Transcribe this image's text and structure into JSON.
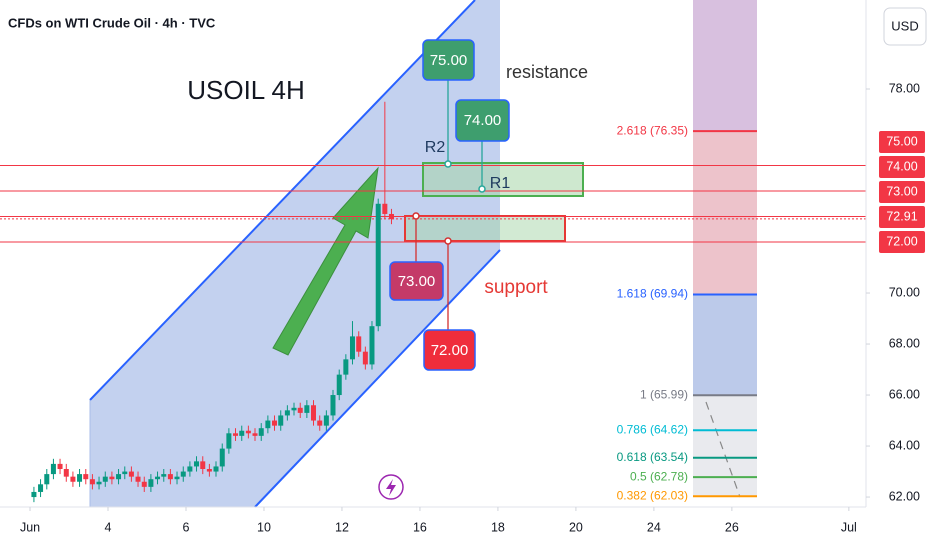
{
  "chart_data": {
    "type": "candlestick",
    "header": "CFDs on WTI Crude Oil · 4h · TVC",
    "title": "USOIL 4H",
    "currency": "USD",
    "up_color": "#089981",
    "down_color": "#f23645",
    "xlim": [
      -0.77,
      21.44
    ],
    "xticks": [
      {
        "value": 0,
        "label": "Jun"
      },
      2,
      4,
      6,
      8,
      10,
      12,
      14,
      16,
      18,
      {
        "value": 21,
        "label": "Jul"
      }
    ],
    "xtick_labels": [
      "Jun",
      "4",
      "6",
      "10",
      "12",
      "16",
      "18",
      "20",
      "24",
      "26",
      "Jul"
    ],
    "ylim": [
      61.61,
      81.49
    ],
    "yticks": [
      {
        "value": 78,
        "label": "78.00"
      },
      {
        "value": 70,
        "label": "70.00"
      },
      {
        "value": 68,
        "label": "68.00"
      },
      {
        "value": 66,
        "label": "66.00"
      },
      {
        "value": 64,
        "label": "64.00"
      },
      {
        "value": 62,
        "label": "62.00"
      }
    ],
    "candles": {
      "x": [
        0.1,
        0.27,
        0.43,
        0.6,
        0.77,
        0.93,
        1.1,
        1.27,
        1.43,
        1.6,
        1.77,
        1.93,
        2.1,
        2.27,
        2.43,
        2.6,
        2.77,
        2.93,
        3.1,
        3.27,
        3.43,
        3.6,
        3.77,
        3.93,
        4.1,
        4.27,
        4.43,
        4.6,
        4.77,
        4.93,
        5.1,
        5.27,
        5.43,
        5.6,
        5.77,
        5.93,
        6.1,
        6.27,
        6.43,
        6.6,
        6.77,
        6.93,
        7.1,
        7.27,
        7.43,
        7.6,
        7.77,
        7.93,
        8.1,
        8.27,
        8.43,
        8.6,
        8.77,
        8.93,
        9.1,
        9.27
      ],
      "open": [
        62.0,
        62.2,
        62.5,
        62.9,
        63.3,
        63.1,
        62.8,
        62.6,
        62.9,
        62.7,
        62.5,
        62.6,
        62.8,
        62.7,
        62.9,
        63.0,
        62.8,
        62.6,
        62.4,
        62.7,
        62.8,
        62.9,
        62.7,
        62.8,
        63.0,
        63.2,
        63.4,
        63.1,
        63.0,
        63.2,
        63.9,
        64.5,
        64.4,
        64.6,
        64.5,
        64.4,
        64.7,
        65.0,
        64.8,
        65.2,
        65.4,
        65.5,
        65.3,
        65.6,
        65.0,
        64.8,
        65.2,
        66.0,
        66.8,
        67.4,
        68.3,
        67.7,
        67.2,
        68.7,
        73.5,
        73.1
      ],
      "high": [
        62.4,
        62.7,
        63.1,
        63.5,
        63.5,
        63.3,
        63.0,
        63.1,
        63.1,
        62.9,
        62.8,
        63.0,
        63.0,
        63.1,
        63.2,
        63.2,
        63.0,
        62.8,
        62.9,
        63.0,
        63.1,
        63.1,
        63.0,
        63.2,
        63.4,
        63.6,
        63.6,
        63.3,
        63.4,
        64.1,
        64.7,
        64.7,
        64.8,
        64.8,
        64.7,
        64.9,
        65.2,
        65.2,
        65.4,
        65.6,
        65.7,
        65.7,
        65.8,
        65.8,
        65.2,
        65.4,
        66.2,
        67.0,
        67.6,
        68.9,
        68.5,
        67.9,
        68.9,
        73.7,
        77.5,
        73.3
      ],
      "low": [
        61.8,
        62.0,
        62.3,
        62.7,
        62.9,
        62.6,
        62.4,
        62.4,
        62.5,
        62.3,
        62.3,
        62.4,
        62.5,
        62.5,
        62.7,
        62.6,
        62.4,
        62.2,
        62.2,
        62.5,
        62.6,
        62.5,
        62.5,
        62.6,
        62.8,
        63.0,
        62.9,
        62.8,
        62.8,
        63.0,
        63.7,
        64.2,
        64.2,
        64.3,
        64.2,
        64.2,
        64.5,
        64.6,
        64.6,
        65.0,
        65.2,
        65.1,
        65.1,
        64.8,
        64.6,
        64.6,
        65.0,
        65.8,
        66.6,
        67.2,
        67.5,
        67.0,
        67.0,
        68.5,
        72.9,
        72.7
      ],
      "close": [
        62.2,
        62.5,
        62.9,
        63.3,
        63.1,
        62.8,
        62.6,
        62.9,
        62.7,
        62.5,
        62.6,
        62.8,
        62.7,
        62.9,
        63.0,
        62.8,
        62.6,
        62.4,
        62.7,
        62.8,
        62.9,
        62.7,
        62.8,
        63.0,
        63.2,
        63.4,
        63.1,
        63.0,
        63.2,
        63.9,
        64.5,
        64.4,
        64.6,
        64.5,
        64.4,
        64.7,
        65.0,
        64.8,
        65.2,
        65.4,
        65.5,
        65.3,
        65.6,
        65.0,
        64.8,
        65.2,
        66.0,
        66.8,
        67.4,
        68.3,
        67.7,
        67.2,
        68.7,
        73.5,
        73.1,
        72.9
      ]
    },
    "price_lines": [
      {
        "value": 75,
        "label": "75.00"
      },
      {
        "value": 74,
        "label": "74.00"
      },
      {
        "value": 73,
        "label": "73.00"
      },
      {
        "value": 72.91,
        "label": "72.91"
      },
      {
        "value": 72,
        "label": "72.00"
      }
    ],
    "price_line_color": "#f23645",
    "fib_levels": [
      {
        "value": 76.35,
        "label": "2.618 (76.35)",
        "color": "#f23645"
      },
      {
        "value": 69.94,
        "label": "1.618 (69.94)",
        "color": "#2962ff"
      },
      {
        "value": 65.99,
        "label": "1 (65.99)",
        "color": "#787b86"
      },
      {
        "value": 64.62,
        "label": "0.786 (64.62)",
        "color": "#00bcd4"
      },
      {
        "value": 63.54,
        "label": "0.618 (63.54)",
        "color": "#089981"
      },
      {
        "value": 62.78,
        "label": "0.5 (62.78)",
        "color": "#4caf50"
      },
      {
        "value": 62.03,
        "label": "0.382 (62.03)",
        "color": "#ff9800"
      }
    ],
    "annotations": {
      "resistance": "resistance",
      "support": "support",
      "r1": "R1",
      "r2": "R2",
      "callouts": [
        "75.00",
        "74.00",
        "73.00",
        "72.00"
      ]
    }
  }
}
